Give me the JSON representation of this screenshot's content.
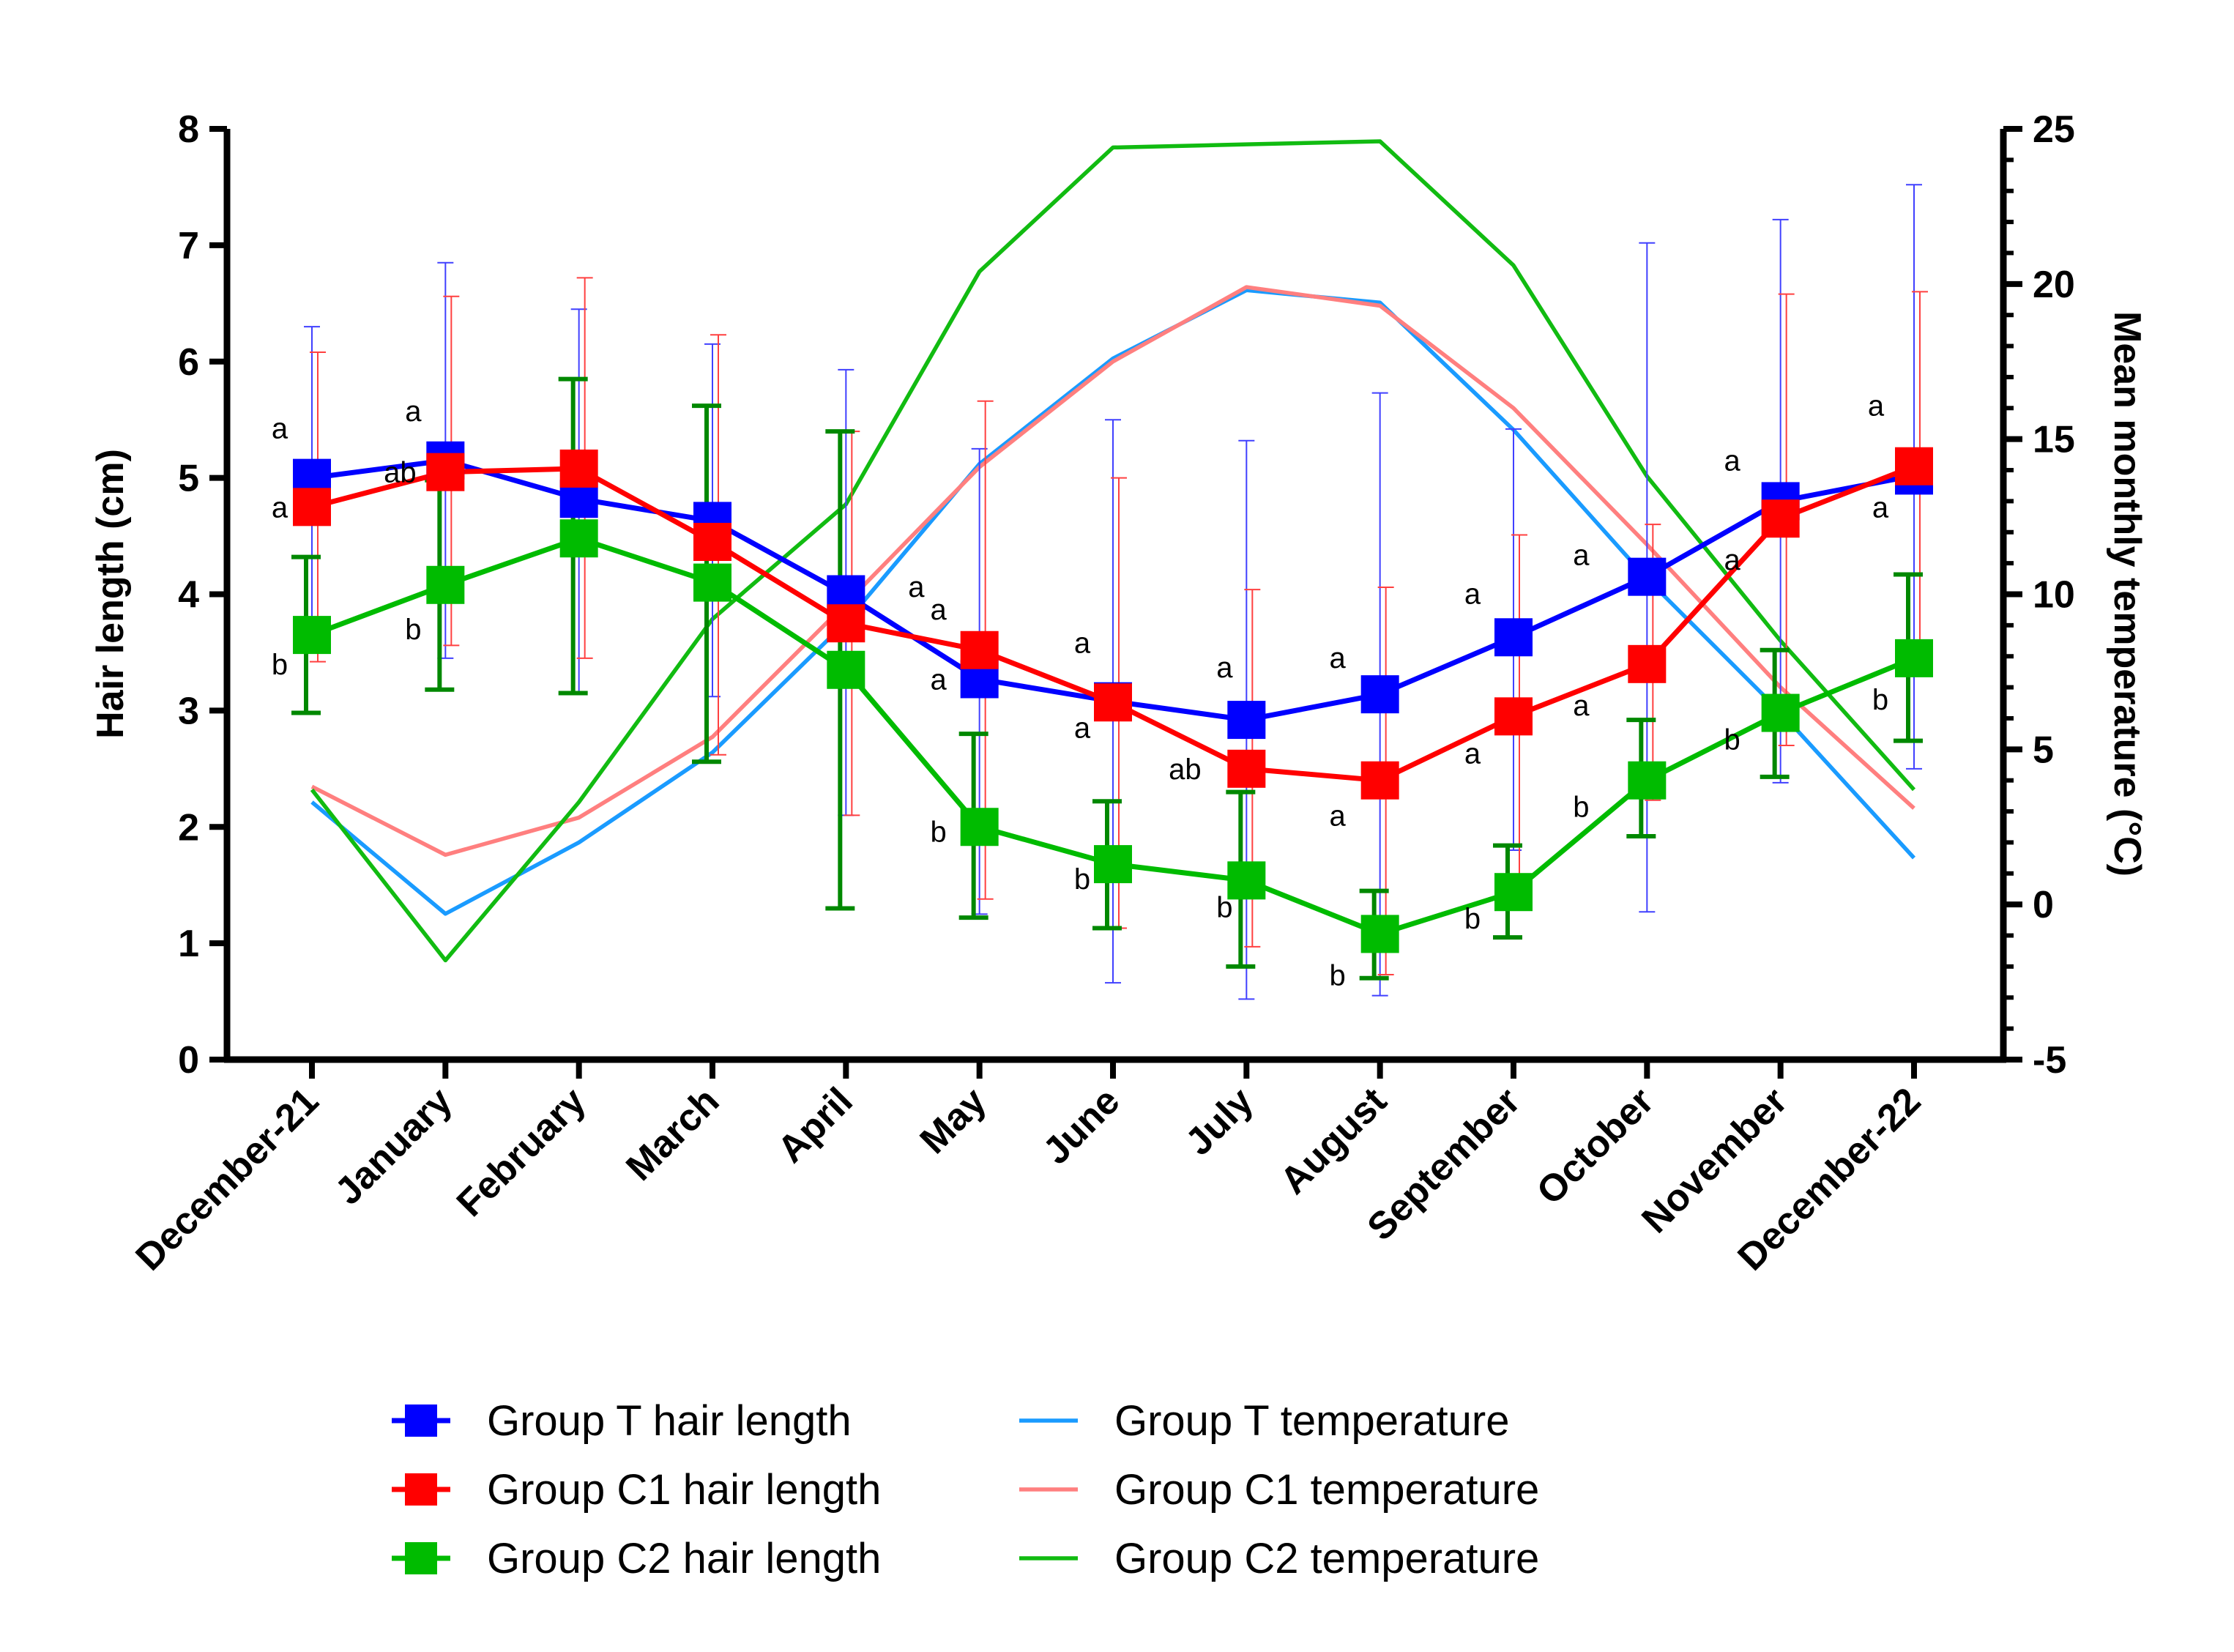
{
  "chart_data": {
    "type": "line",
    "title": "",
    "categories": [
      "December-21",
      "January",
      "February",
      "March",
      "April",
      "May",
      "June",
      "July",
      "August",
      "September",
      "October",
      "November",
      "December-22"
    ],
    "xlabel": "",
    "ylabel": "Hair length (cm)",
    "y2label": "Mean monthly temperature (°C)",
    "ylim": [
      0,
      8
    ],
    "y2lim": [
      -5,
      25
    ],
    "yticks": [
      "0",
      "1",
      "2",
      "3",
      "4",
      "5",
      "6",
      "7",
      "8"
    ],
    "y2ticks": [
      "-5",
      "0",
      "5",
      "10",
      "15",
      "20",
      "25"
    ],
    "legend_position": "bottom",
    "series": [
      {
        "name": "Group T hair length",
        "axis": "left",
        "marker": "square",
        "color": "#0000ff",
        "values": [
          5.0,
          5.15,
          4.82,
          4.63,
          4.0,
          3.27,
          3.08,
          2.92,
          3.14,
          3.63,
          4.15,
          4.8,
          5.02
        ],
        "err_low": [
          3.72,
          3.45,
          3.15,
          3.12,
          2.1,
          1.25,
          0.66,
          0.52,
          0.55,
          1.8,
          1.27,
          2.38,
          2.5
        ],
        "err_high": [
          6.3,
          6.85,
          6.45,
          6.15,
          5.93,
          5.25,
          5.5,
          5.32,
          5.73,
          5.42,
          7.02,
          7.22,
          7.52
        ],
        "err_color": "#4040ff",
        "letters": [
          "a",
          "a",
          "",
          "",
          "",
          "a",
          "a",
          "a",
          "a",
          "a",
          "a",
          "a",
          "a"
        ]
      },
      {
        "name": "Group C1 hair length",
        "axis": "left",
        "marker": "square",
        "color": "#ff0000",
        "values": [
          4.75,
          5.05,
          5.08,
          4.45,
          3.75,
          3.52,
          3.07,
          2.5,
          2.4,
          2.95,
          3.4,
          4.65,
          5.1
        ],
        "err_low": [
          3.42,
          3.56,
          3.45,
          2.62,
          2.1,
          1.38,
          1.13,
          0.97,
          0.73,
          1.4,
          2.23,
          2.7,
          3.6
        ],
        "err_high": [
          6.08,
          6.56,
          6.72,
          6.23,
          5.4,
          5.66,
          5.0,
          4.04,
          4.06,
          4.51,
          4.6,
          6.58,
          6.6
        ],
        "err_color": "#ff4040",
        "letters": [
          "a",
          "ab",
          "",
          "",
          "a",
          "a",
          "a",
          "ab",
          "a",
          "a",
          "a",
          "a",
          "a"
        ]
      },
      {
        "name": "Group C2 hair length",
        "axis": "left",
        "marker": "square",
        "color": "#00bb00",
        "values": [
          3.65,
          4.08,
          4.48,
          4.1,
          3.35,
          2.0,
          1.68,
          1.54,
          1.08,
          1.44,
          2.4,
          2.98,
          3.45
        ],
        "err_low": [
          2.98,
          3.18,
          3.15,
          2.56,
          1.3,
          1.22,
          1.13,
          0.8,
          0.7,
          1.05,
          1.92,
          2.43,
          2.74
        ],
        "err_high": [
          4.32,
          4.98,
          5.85,
          5.62,
          5.4,
          2.8,
          2.22,
          2.3,
          1.45,
          1.84,
          2.92,
          3.52,
          4.17
        ],
        "err_color": "#008800",
        "letters": [
          "b",
          "b",
          "",
          "",
          "",
          "b",
          "b",
          "b",
          "b",
          "b",
          "b",
          "b",
          "b"
        ]
      },
      {
        "name": "Group T temperature",
        "axis": "right",
        "marker": "none",
        "color": "#1a9bff",
        "values": [
          3.3,
          -0.3,
          2.0,
          4.9,
          9.1,
          14.2,
          17.6,
          19.8,
          19.4,
          15.3,
          10.5,
          6.2,
          1.5
        ]
      },
      {
        "name": "Group C1 temperature",
        "axis": "right",
        "marker": "none",
        "color": "#ff7f7f",
        "values": [
          3.8,
          1.6,
          2.8,
          5.4,
          9.7,
          14.1,
          17.5,
          19.9,
          19.3,
          16.0,
          11.6,
          7.0,
          3.1
        ]
      },
      {
        "name": "Group C2 temperature",
        "axis": "right",
        "marker": "none",
        "color": "#11bb11",
        "values": [
          3.7,
          -1.8,
          3.3,
          9.2,
          12.9,
          20.4,
          24.4,
          24.5,
          24.6,
          20.6,
          13.8,
          8.5,
          3.7
        ]
      }
    ]
  }
}
